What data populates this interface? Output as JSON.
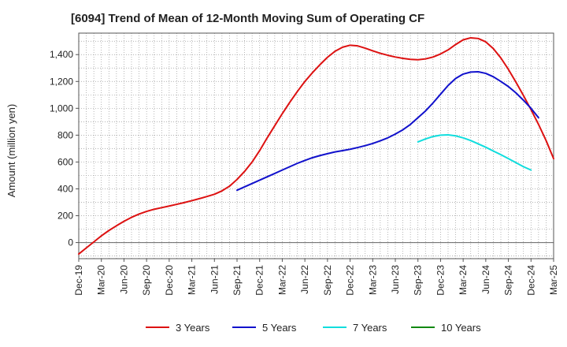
{
  "chart_data": {
    "type": "line",
    "title": "[6094]  Trend of Mean of 12-Month Moving Sum of Operating CF",
    "xlabel": "",
    "ylabel": "Amount (million yen)",
    "ylim": [
      -120,
      1560
    ],
    "yticks": [
      0,
      200,
      400,
      600,
      800,
      1000,
      1200,
      1400
    ],
    "ytick_labels": [
      "0",
      "200",
      "400",
      "600",
      "800",
      "1,000",
      "1,200",
      "1,400"
    ],
    "x_start": "2019-12",
    "x_end": "2025-03",
    "xtick_labels": [
      "Dec-19",
      "Mar-20",
      "Jun-20",
      "Sep-20",
      "Dec-20",
      "Mar-21",
      "Jun-21",
      "Sep-21",
      "Dec-21",
      "Mar-22",
      "Jun-22",
      "Sep-22",
      "Dec-22",
      "Mar-23",
      "Jun-23",
      "Sep-23",
      "Dec-23",
      "Mar-24",
      "Jun-24",
      "Sep-24",
      "Dec-24",
      "Mar-25"
    ],
    "grid": true,
    "legend_position": "bottom",
    "series": [
      {
        "name": "3 Years",
        "color": "#dd1111",
        "start_month_index": 0,
        "values": [
          -85,
          -40,
          5,
          50,
          90,
          125,
          158,
          188,
          212,
          232,
          248,
          260,
          272,
          285,
          298,
          312,
          327,
          343,
          360,
          385,
          420,
          470,
          530,
          600,
          685,
          780,
          870,
          960,
          1045,
          1125,
          1200,
          1265,
          1325,
          1380,
          1425,
          1455,
          1470,
          1465,
          1448,
          1428,
          1410,
          1395,
          1382,
          1372,
          1365,
          1362,
          1368,
          1382,
          1405,
          1435,
          1475,
          1510,
          1525,
          1520,
          1495,
          1445,
          1375,
          1290,
          1195,
          1095,
          990,
          880,
          760,
          625
        ]
      },
      {
        "name": "5 Years",
        "color": "#1111cc",
        "start_month_index": 21,
        "values": [
          390,
          415,
          440,
          465,
          490,
          515,
          540,
          565,
          590,
          612,
          632,
          648,
          662,
          675,
          685,
          695,
          708,
          722,
          738,
          758,
          780,
          808,
          840,
          880,
          930,
          980,
          1040,
          1105,
          1170,
          1222,
          1255,
          1270,
          1272,
          1260,
          1235,
          1200,
          1162,
          1115,
          1060,
          1000,
          930
        ]
      },
      {
        "name": "7 Years",
        "color": "#11dddd",
        "start_month_index": 45,
        "values": [
          750,
          772,
          790,
          800,
          802,
          795,
          780,
          760,
          735,
          710,
          682,
          655,
          625,
          595,
          565,
          540
        ]
      },
      {
        "name": "10 Years",
        "color": "#118811",
        "start_month_index": 0,
        "values": []
      }
    ]
  }
}
